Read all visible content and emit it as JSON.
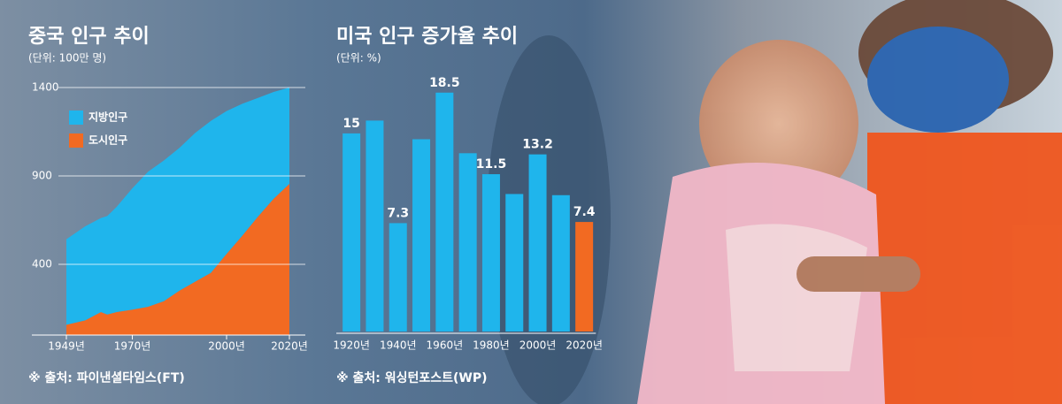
{
  "chart_data": [
    {
      "type": "area",
      "title": "중국 인구 추이",
      "subtitle": "(단위: 100만 명)",
      "source": "※ 출처: 파이낸셜타임스(FT)",
      "stacked": true,
      "legend": "upper left",
      "grid": true,
      "x": [
        1949,
        1955,
        1960,
        1962,
        1965,
        1970,
        1975,
        1980,
        1985,
        1990,
        1995,
        2000,
        2005,
        2010,
        2015,
        2020
      ],
      "series": [
        {
          "name": "도시인구",
          "color": "#f26a22",
          "values": [
            58,
            83,
            130,
            116,
            130,
            144,
            160,
            191,
            251,
            302,
            352,
            459,
            562,
            670,
            771,
            855
          ]
        },
        {
          "name": "지방인구",
          "color": "#1fb5ec",
          "values": [
            484,
            532,
            532,
            557,
            595,
            686,
            764,
            796,
            808,
            841,
            859,
            808,
            746,
            671,
            604,
            545
          ]
        }
      ],
      "xlim": [
        1949,
        2020
      ],
      "xticks": [
        {
          "value": 1949,
          "label": "1949년"
        },
        {
          "value": 1970,
          "label": "1970년"
        },
        {
          "value": 2000,
          "label": "2000년"
        },
        {
          "value": 2020,
          "label": "2020년"
        }
      ],
      "ylim": [
        0,
        1400
      ],
      "yticks": [
        400,
        900,
        1400
      ]
    },
    {
      "type": "bar",
      "title": "미국 인구 증가율 추이",
      "subtitle": "(단위: %)",
      "source": "※ 출처: 워싱턴포스트(WP)",
      "categories": [
        "1920년",
        null,
        "1940년",
        null,
        "1960년",
        null,
        "1980년",
        null,
        "2000년",
        null,
        "2020년"
      ],
      "values": [
        15,
        16.1,
        7.3,
        14.5,
        18.5,
        13.3,
        11.5,
        9.8,
        13.2,
        9.7,
        7.4
      ],
      "value_labels": [
        "15",
        null,
        "7.3",
        null,
        "18.5",
        null,
        "11.5",
        null,
        "13.2",
        null,
        "7.4"
      ],
      "colors": [
        "#1fb5ec",
        "#1fb5ec",
        "#1fb5ec",
        "#1fb5ec",
        "#1fb5ec",
        "#1fb5ec",
        "#1fb5ec",
        "#1fb5ec",
        "#1fb5ec",
        "#1fb5ec",
        "#f26a22"
      ],
      "ylim": [
        -2,
        20
      ]
    }
  ]
}
